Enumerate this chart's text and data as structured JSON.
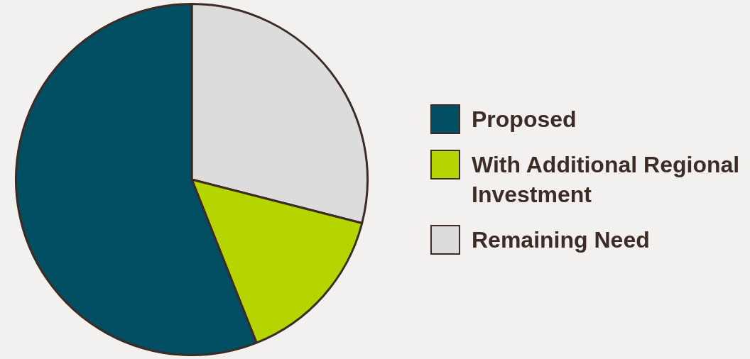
{
  "chart_data": {
    "type": "pie",
    "categories": [
      "Proposed",
      "With Additional Regional Investment",
      "Remaining Need"
    ],
    "values": [
      56,
      15,
      29
    ],
    "colors": [
      "#024f63",
      "#b5d400",
      "#dcdcdc"
    ],
    "legend": "right"
  }
}
